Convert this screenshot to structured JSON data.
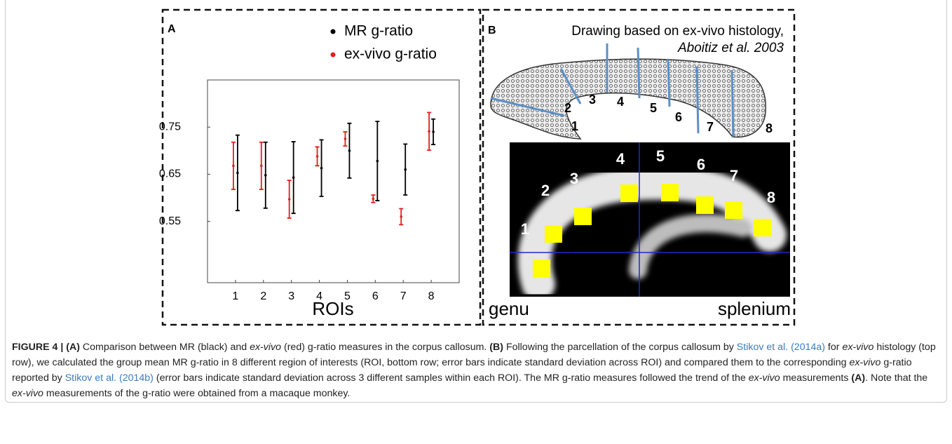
{
  "chart_data": {
    "type": "errorbar",
    "panel_label": "A",
    "x_label": "ROIs",
    "xlim": [
      0,
      9
    ],
    "xticks": [
      1,
      2,
      3,
      4,
      5,
      6,
      7,
      8
    ],
    "ylim": [
      0.42,
      0.85
    ],
    "yticks": [
      0.55,
      0.65,
      0.75
    ],
    "series": [
      {
        "name": "MR g-ratio",
        "color": "#000000",
        "values": [
          0.653,
          0.648,
          0.643,
          0.663,
          0.7,
          0.678,
          0.66,
          0.74
        ],
        "errors": [
          0.08,
          0.07,
          0.076,
          0.06,
          0.058,
          0.084,
          0.054,
          0.027
        ]
      },
      {
        "name": "ex-vivo g-ratio",
        "color": "#e0201b",
        "values": [
          0.668,
          0.668,
          0.597,
          0.688,
          0.725,
          0.598,
          0.56,
          0.741
        ],
        "errors": [
          0.05,
          0.05,
          0.04,
          0.02,
          0.015,
          0.008,
          0.017,
          0.04
        ]
      }
    ]
  },
  "panel_b": {
    "label": "B",
    "source_line": "Drawing based on ex-vivo histology,",
    "source_citation": "Aboitiz et al. 2003",
    "drawing_labels": [
      "1",
      "2",
      "3",
      "4",
      "5",
      "6",
      "7",
      "8"
    ],
    "mri_labels": [
      "1",
      "2",
      "3",
      "4",
      "5",
      "6",
      "7",
      "8"
    ],
    "left_label": "genu",
    "right_label": "splenium"
  },
  "caption": [
    "FIGURE 4 | (A)",
    " Comparison between MR (black) and ",
    "ex-vivo",
    " (red) g-ratio measures in the corpus callosum. ",
    "(B)",
    " Following the parcellation of the corpus callosum by ",
    "Stikov et al. (2014a)",
    " for ",
    "ex-vivo",
    " histology (top row), we calculated the group mean MR g-ratio in 8 different region of interests (ROI, bottom row; error bars indicate standard deviation across ROI) and compared them to the corresponding ",
    "ex-vivo",
    " g-ratio reported by ",
    "Stikov et al. (2014b)",
    " (error bars indicate standard deviation across 3 different samples within each ROI). The MR g-ratio measures followed the trend of the ",
    "ex-vivo",
    " measurements ",
    "(A)",
    ". Note that the ",
    "ex-vivo",
    " measurements of the g-ratio were obtained from a macaque monkey."
  ]
}
